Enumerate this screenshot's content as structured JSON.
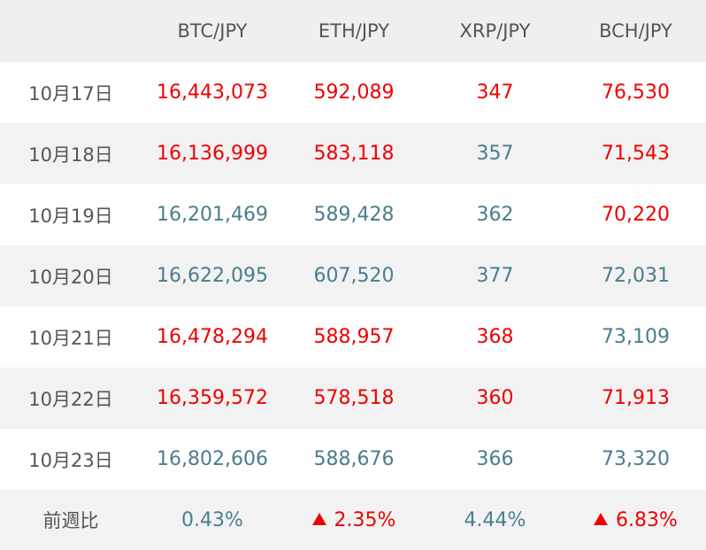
{
  "headers": [
    "",
    "BTC/JPY",
    "ETH/JPY",
    "XRP/JPY",
    "BCH/JPY"
  ],
  "colors": {
    "up": "#ee0000",
    "down": "#4a7d8c",
    "header_bg": "#efefef",
    "row_alt_bg": "#f2f2f2"
  },
  "rows": [
    {
      "date": "10月17日",
      "cells": [
        {
          "value": "16,443,073",
          "trend": "up"
        },
        {
          "value": "592,089",
          "trend": "up"
        },
        {
          "value": "347",
          "trend": "up"
        },
        {
          "value": "76,530",
          "trend": "up"
        }
      ]
    },
    {
      "date": "10月18日",
      "cells": [
        {
          "value": "16,136,999",
          "trend": "up"
        },
        {
          "value": "583,118",
          "trend": "up"
        },
        {
          "value": "357",
          "trend": "down"
        },
        {
          "value": "71,543",
          "trend": "up"
        }
      ]
    },
    {
      "date": "10月19日",
      "cells": [
        {
          "value": "16,201,469",
          "trend": "down"
        },
        {
          "value": "589,428",
          "trend": "down"
        },
        {
          "value": "362",
          "trend": "down"
        },
        {
          "value": "70,220",
          "trend": "up"
        }
      ]
    },
    {
      "date": "10月20日",
      "cells": [
        {
          "value": "16,622,095",
          "trend": "down"
        },
        {
          "value": "607,520",
          "trend": "down"
        },
        {
          "value": "377",
          "trend": "down"
        },
        {
          "value": "72,031",
          "trend": "down"
        }
      ]
    },
    {
      "date": "10月21日",
      "cells": [
        {
          "value": "16,478,294",
          "trend": "up"
        },
        {
          "value": "588,957",
          "trend": "up"
        },
        {
          "value": "368",
          "trend": "up"
        },
        {
          "value": "73,109",
          "trend": "down"
        }
      ]
    },
    {
      "date": "10月22日",
      "cells": [
        {
          "value": "16,359,572",
          "trend": "up"
        },
        {
          "value": "578,518",
          "trend": "up"
        },
        {
          "value": "360",
          "trend": "up"
        },
        {
          "value": "71,913",
          "trend": "up"
        }
      ]
    },
    {
      "date": "10月23日",
      "cells": [
        {
          "value": "16,802,606",
          "trend": "down"
        },
        {
          "value": "588,676",
          "trend": "down"
        },
        {
          "value": "366",
          "trend": "down"
        },
        {
          "value": "73,320",
          "trend": "down"
        }
      ]
    }
  ],
  "summary": {
    "label": "前週比",
    "cells": [
      {
        "value": "0.43%",
        "trend": "down",
        "arrow": false
      },
      {
        "value": "2.35%",
        "trend": "up",
        "arrow": true
      },
      {
        "value": "4.44%",
        "trend": "down",
        "arrow": false
      },
      {
        "value": "6.83%",
        "trend": "up",
        "arrow": true
      }
    ]
  }
}
